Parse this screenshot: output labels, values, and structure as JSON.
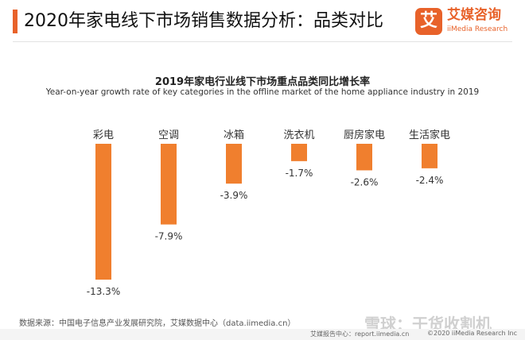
{
  "header": {
    "title": "2020年家电线下市场销售数据分析：品类对比",
    "logo_mark": "艾",
    "logo_cn": "艾媒咨询",
    "logo_en": "iiMedia Research"
  },
  "colors": {
    "accent": "#e8622a",
    "bar": "#f07f2e"
  },
  "chart_data": {
    "type": "bar",
    "title": "2019年家电行业线下市场重点品类同比增长率",
    "subtitle": "Year-on-year growth rate of key categories in the offline market of the home appliance industry in 2019",
    "categories": [
      "彩电",
      "空调",
      "冰箱",
      "洗衣机",
      "厨房家电",
      "生活家电"
    ],
    "values": [
      -13.3,
      -7.9,
      -3.9,
      -1.7,
      -2.6,
      -2.4
    ],
    "value_labels": [
      "-13.3%",
      "-7.9%",
      "-3.9%",
      "-1.7%",
      "-2.6%",
      "-2.4%"
    ],
    "ylim": [
      -13.3,
      0
    ],
    "unit": "%",
    "xlabel": "",
    "ylabel": "",
    "grid": false
  },
  "footer": {
    "source": "数据来源：中国电子信息产业发展研究院，艾媒数据中心（data.iimedia.cn）",
    "report": "艾媒报告中心：report.iimedia.cn",
    "copyright": "©2020  iiMedia Research  Inc",
    "watermark": "雪球：干货收割机"
  }
}
